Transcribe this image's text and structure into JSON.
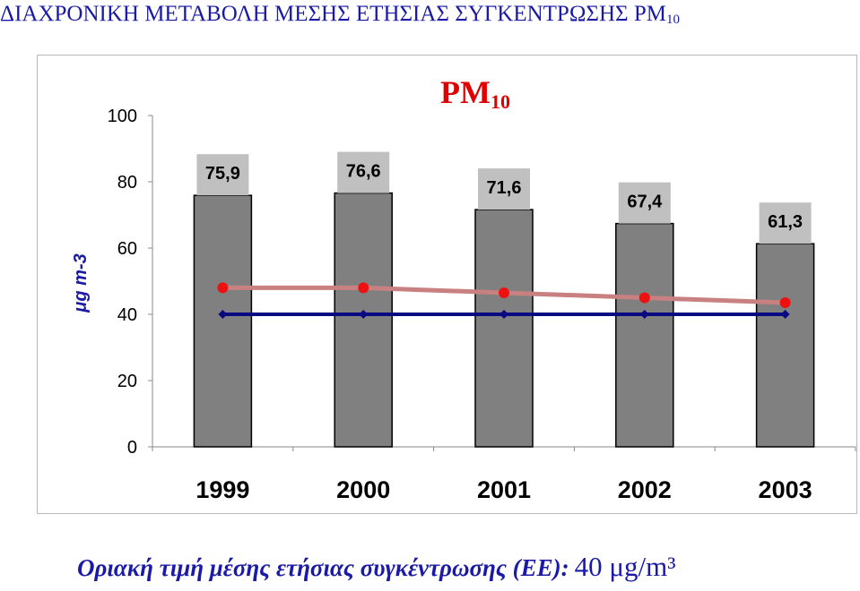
{
  "title": {
    "text": "ΔΙΑΧΡΟΝΙΚΗ ΜΕΤΑΒΟΛΗ ΜΕΣΗΣ ΕΤΗΣΙΑΣ ΣΥΓΚΕΝΤΡΩΣΗΣ PM",
    "subscript": "10"
  },
  "footer": {
    "label": "Οριακή τιμή μέσης ετήσιας συγκέντρωσης (ΕΕ):",
    "value": "40 μg/m³"
  },
  "colors": {
    "bar": "#808080",
    "label_bg": "#c0c0c0",
    "trend_line": "#c98080",
    "trend_marker": "#ee1111",
    "limit_line": "#0a0a80",
    "chart_title": "#e00000",
    "text": "#1a1aa6"
  },
  "chart_data": {
    "type": "bar",
    "title": "PM",
    "title_subscript": "10",
    "ylabel": "μg m-3",
    "xlabel": "",
    "ylim": [
      0,
      100
    ],
    "yticks": [
      0,
      20,
      40,
      60,
      80,
      100
    ],
    "grid": false,
    "categories": [
      "1999",
      "2000",
      "2001",
      "2002",
      "2003"
    ],
    "series": [
      {
        "type": "bar",
        "values": [
          75.9,
          76.6,
          71.6,
          67.4,
          61.3
        ],
        "labels": [
          "75,9",
          "76,6",
          "71,6",
          "67,4",
          "61,3"
        ]
      },
      {
        "type": "line",
        "values": [
          48,
          48,
          46.5,
          45,
          43.5
        ]
      },
      {
        "type": "line",
        "values": [
          40,
          40,
          40,
          40,
          40
        ]
      }
    ]
  }
}
